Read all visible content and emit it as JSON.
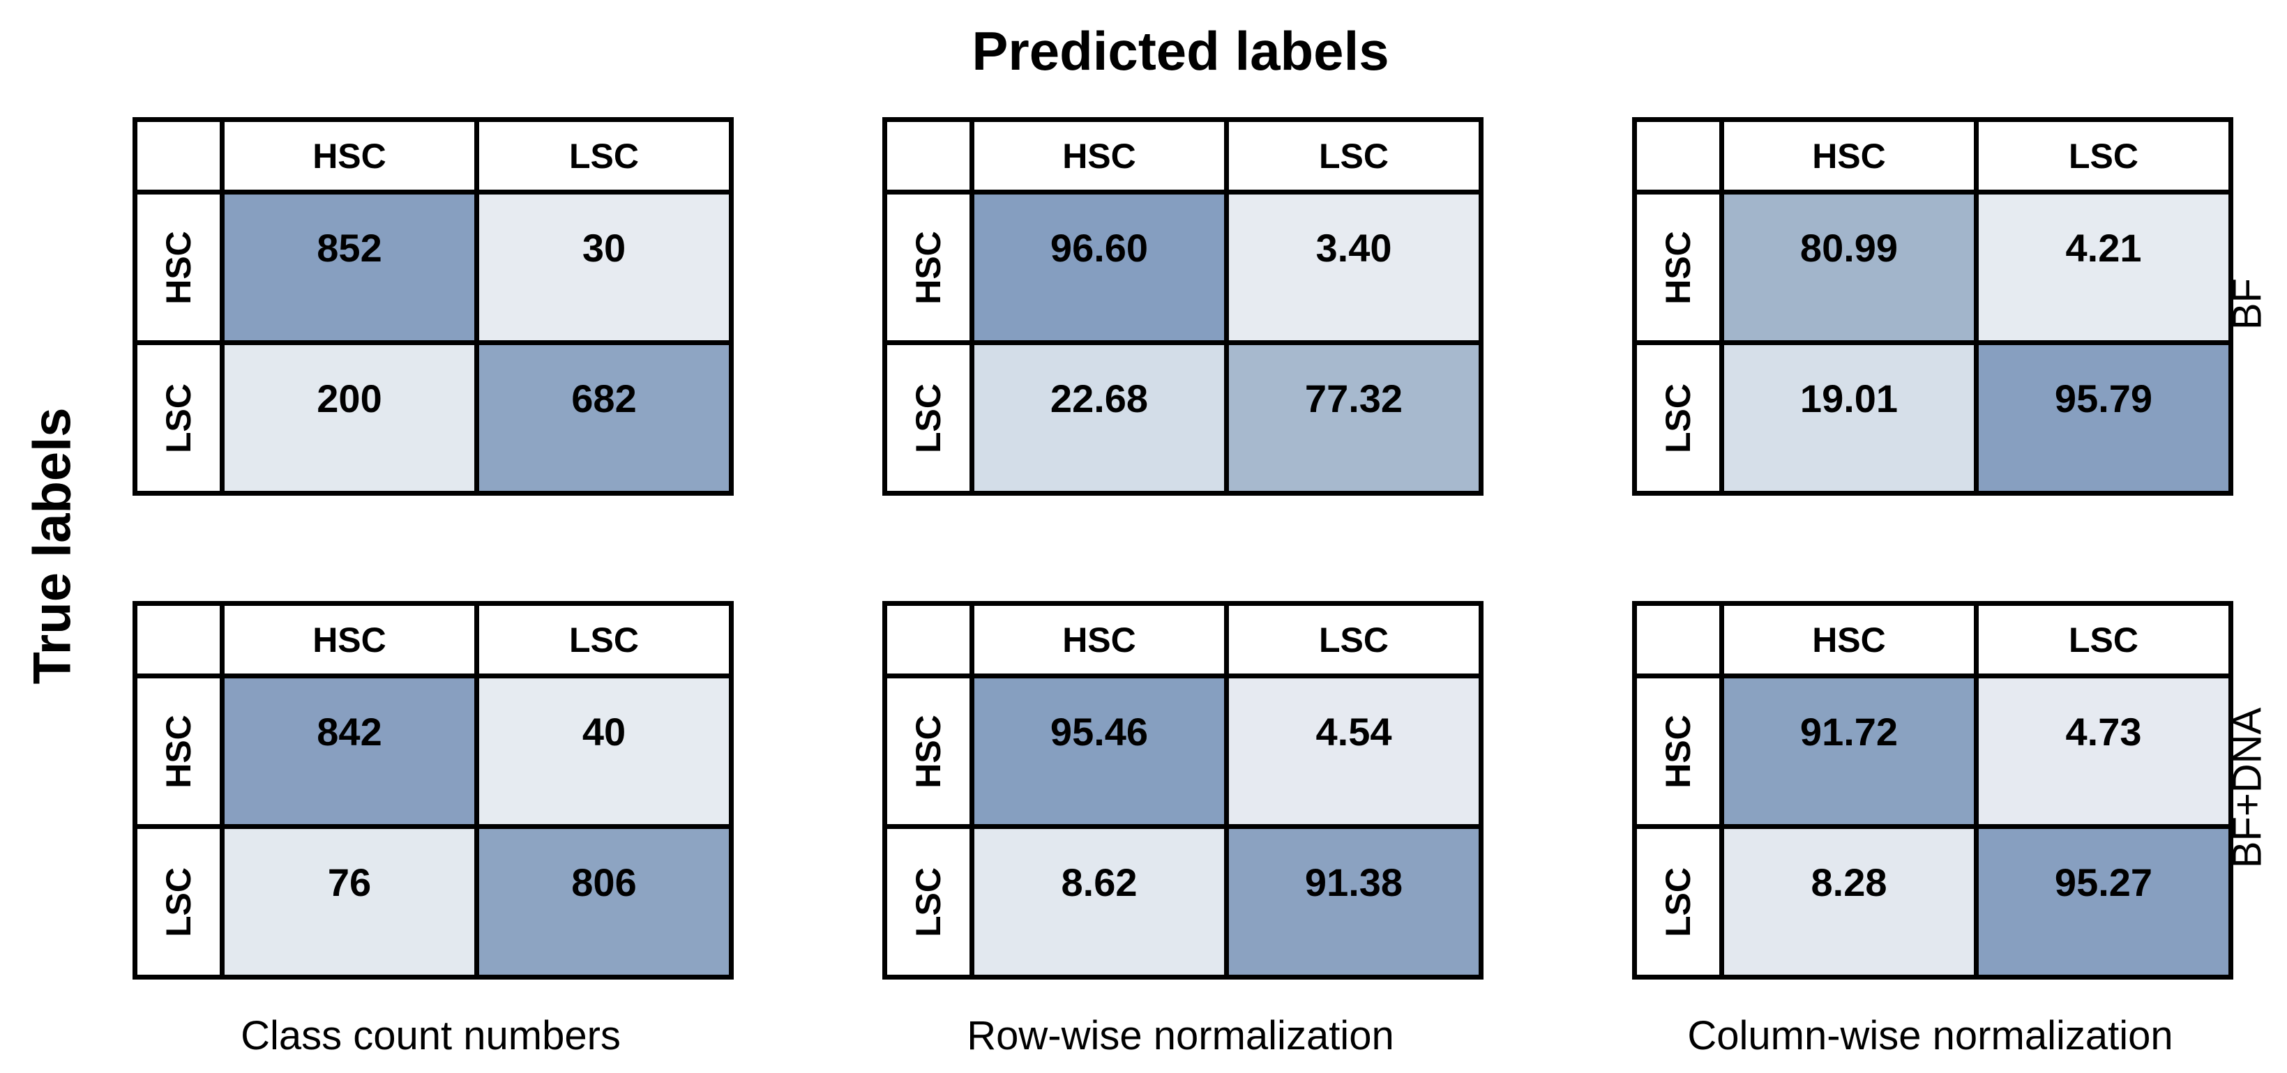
{
  "figure": {
    "title": "Predicted labels",
    "left_axis_label": "True labels",
    "class_labels": [
      "HSC",
      "LSC"
    ],
    "row_group_labels": [
      "BF",
      "BF+DNA"
    ],
    "column_captions": [
      "Class count numbers",
      "Row-wise normalization",
      "Column-wise normalization"
    ]
  },
  "colors": {
    "border": "#000000",
    "background": "#ffffff",
    "cell_dark": "#879fc0",
    "cell_light": "#e7ebf1"
  },
  "chart_data": {
    "type": "heatmap",
    "title": "Predicted labels",
    "xlabel": "Predicted labels",
    "ylabel": "True labels",
    "row_labels": [
      "HSC",
      "LSC"
    ],
    "col_labels": [
      "HSC",
      "LSC"
    ],
    "legend_position": "none",
    "grid": "cell borders only",
    "matrices": [
      {
        "row_group": "BF",
        "column_caption": "Class count numbers",
        "cells": [
          [
            {
              "value": "852",
              "color": "#879fc0"
            },
            {
              "value": "30",
              "color": "#e7ebf1"
            }
          ],
          [
            {
              "value": "200",
              "color": "#e3e9ef"
            },
            {
              "value": "682",
              "color": "#8ea5c3"
            }
          ]
        ]
      },
      {
        "row_group": "BF",
        "column_caption": "Row-wise normalization",
        "cells": [
          [
            {
              "value": "96.60",
              "color": "#859ec0"
            },
            {
              "value": "3.40",
              "color": "#e7ebf1"
            }
          ],
          [
            {
              "value": "22.68",
              "color": "#d3dde8"
            },
            {
              "value": "77.32",
              "color": "#a7b9ce"
            }
          ]
        ]
      },
      {
        "row_group": "BF",
        "column_caption": "Column-wise normalization",
        "cells": [
          [
            {
              "value": "80.99",
              "color": "#a2b5cb"
            },
            {
              "value": "4.21",
              "color": "#e6ebf1"
            }
          ],
          [
            {
              "value": "19.01",
              "color": "#d6dfe9"
            },
            {
              "value": "95.79",
              "color": "#879fc0"
            }
          ]
        ]
      },
      {
        "row_group": "BF+DNA",
        "column_caption": "Class count numbers",
        "cells": [
          [
            {
              "value": "842",
              "color": "#889fc0"
            },
            {
              "value": "40",
              "color": "#e6ebf1"
            }
          ],
          [
            {
              "value": "76",
              "color": "#e3e9ef"
            },
            {
              "value": "806",
              "color": "#8da4c2"
            }
          ]
        ]
      },
      {
        "row_group": "BF+DNA",
        "column_caption": "Row-wise normalization",
        "cells": [
          [
            {
              "value": "95.46",
              "color": "#869fc0"
            },
            {
              "value": "4.54",
              "color": "#e6eaf1"
            }
          ],
          [
            {
              "value": "8.62",
              "color": "#e2e8ef"
            },
            {
              "value": "91.38",
              "color": "#8ba2c1"
            }
          ]
        ]
      },
      {
        "row_group": "BF+DNA",
        "column_caption": "Column-wise normalization",
        "cells": [
          [
            {
              "value": "91.72",
              "color": "#8aa2c1"
            },
            {
              "value": "4.73",
              "color": "#e6eaf1"
            }
          ],
          [
            {
              "value": "8.28",
              "color": "#e3e8ef"
            },
            {
              "value": "95.27",
              "color": "#879fc0"
            }
          ]
        ]
      }
    ]
  }
}
